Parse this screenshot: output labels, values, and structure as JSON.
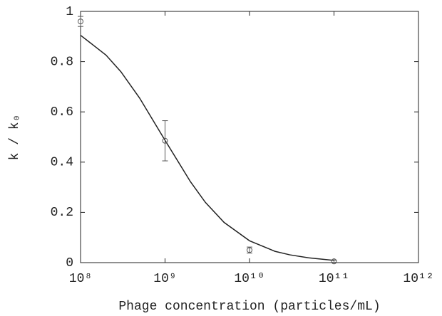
{
  "chart_data": {
    "type": "scatter",
    "x_label": "Phage concentration (particles/mL)",
    "y_label": "k / k₀",
    "xlog": true,
    "color": "#555555",
    "xlim": [
      100000000,
      1000000000000
    ],
    "ylim": [
      0,
      1
    ],
    "xticks": [
      {
        "value": 100000000,
        "label": "10⁸"
      },
      {
        "value": 1000000000,
        "label": "10⁹"
      },
      {
        "value": 10000000000,
        "label": "10¹⁰"
      },
      {
        "value": 100000000000,
        "label": "10¹¹"
      },
      {
        "value": 1000000000000,
        "label": "10¹²"
      }
    ],
    "yticks": [
      0,
      0.2,
      0.4,
      0.6,
      0.8,
      1
    ],
    "points": {
      "x": [
        100000000,
        1000000000,
        10000000000,
        100000000000
      ],
      "values": [
        0.96,
        0.485,
        0.05,
        0.005
      ],
      "errors": [
        0.02,
        0.08,
        0.012,
        0.004
      ]
    },
    "curve": {
      "x": [
        100000000,
        200000000,
        300000000,
        500000000,
        1000000000,
        2000000000,
        3000000000,
        5000000000,
        10000000000,
        20000000000,
        30000000000,
        50000000000,
        100000000000
      ],
      "values": [
        0.905,
        0.826,
        0.76,
        0.655,
        0.487,
        0.322,
        0.24,
        0.16,
        0.087,
        0.045,
        0.031,
        0.019,
        0.009
      ]
    }
  }
}
